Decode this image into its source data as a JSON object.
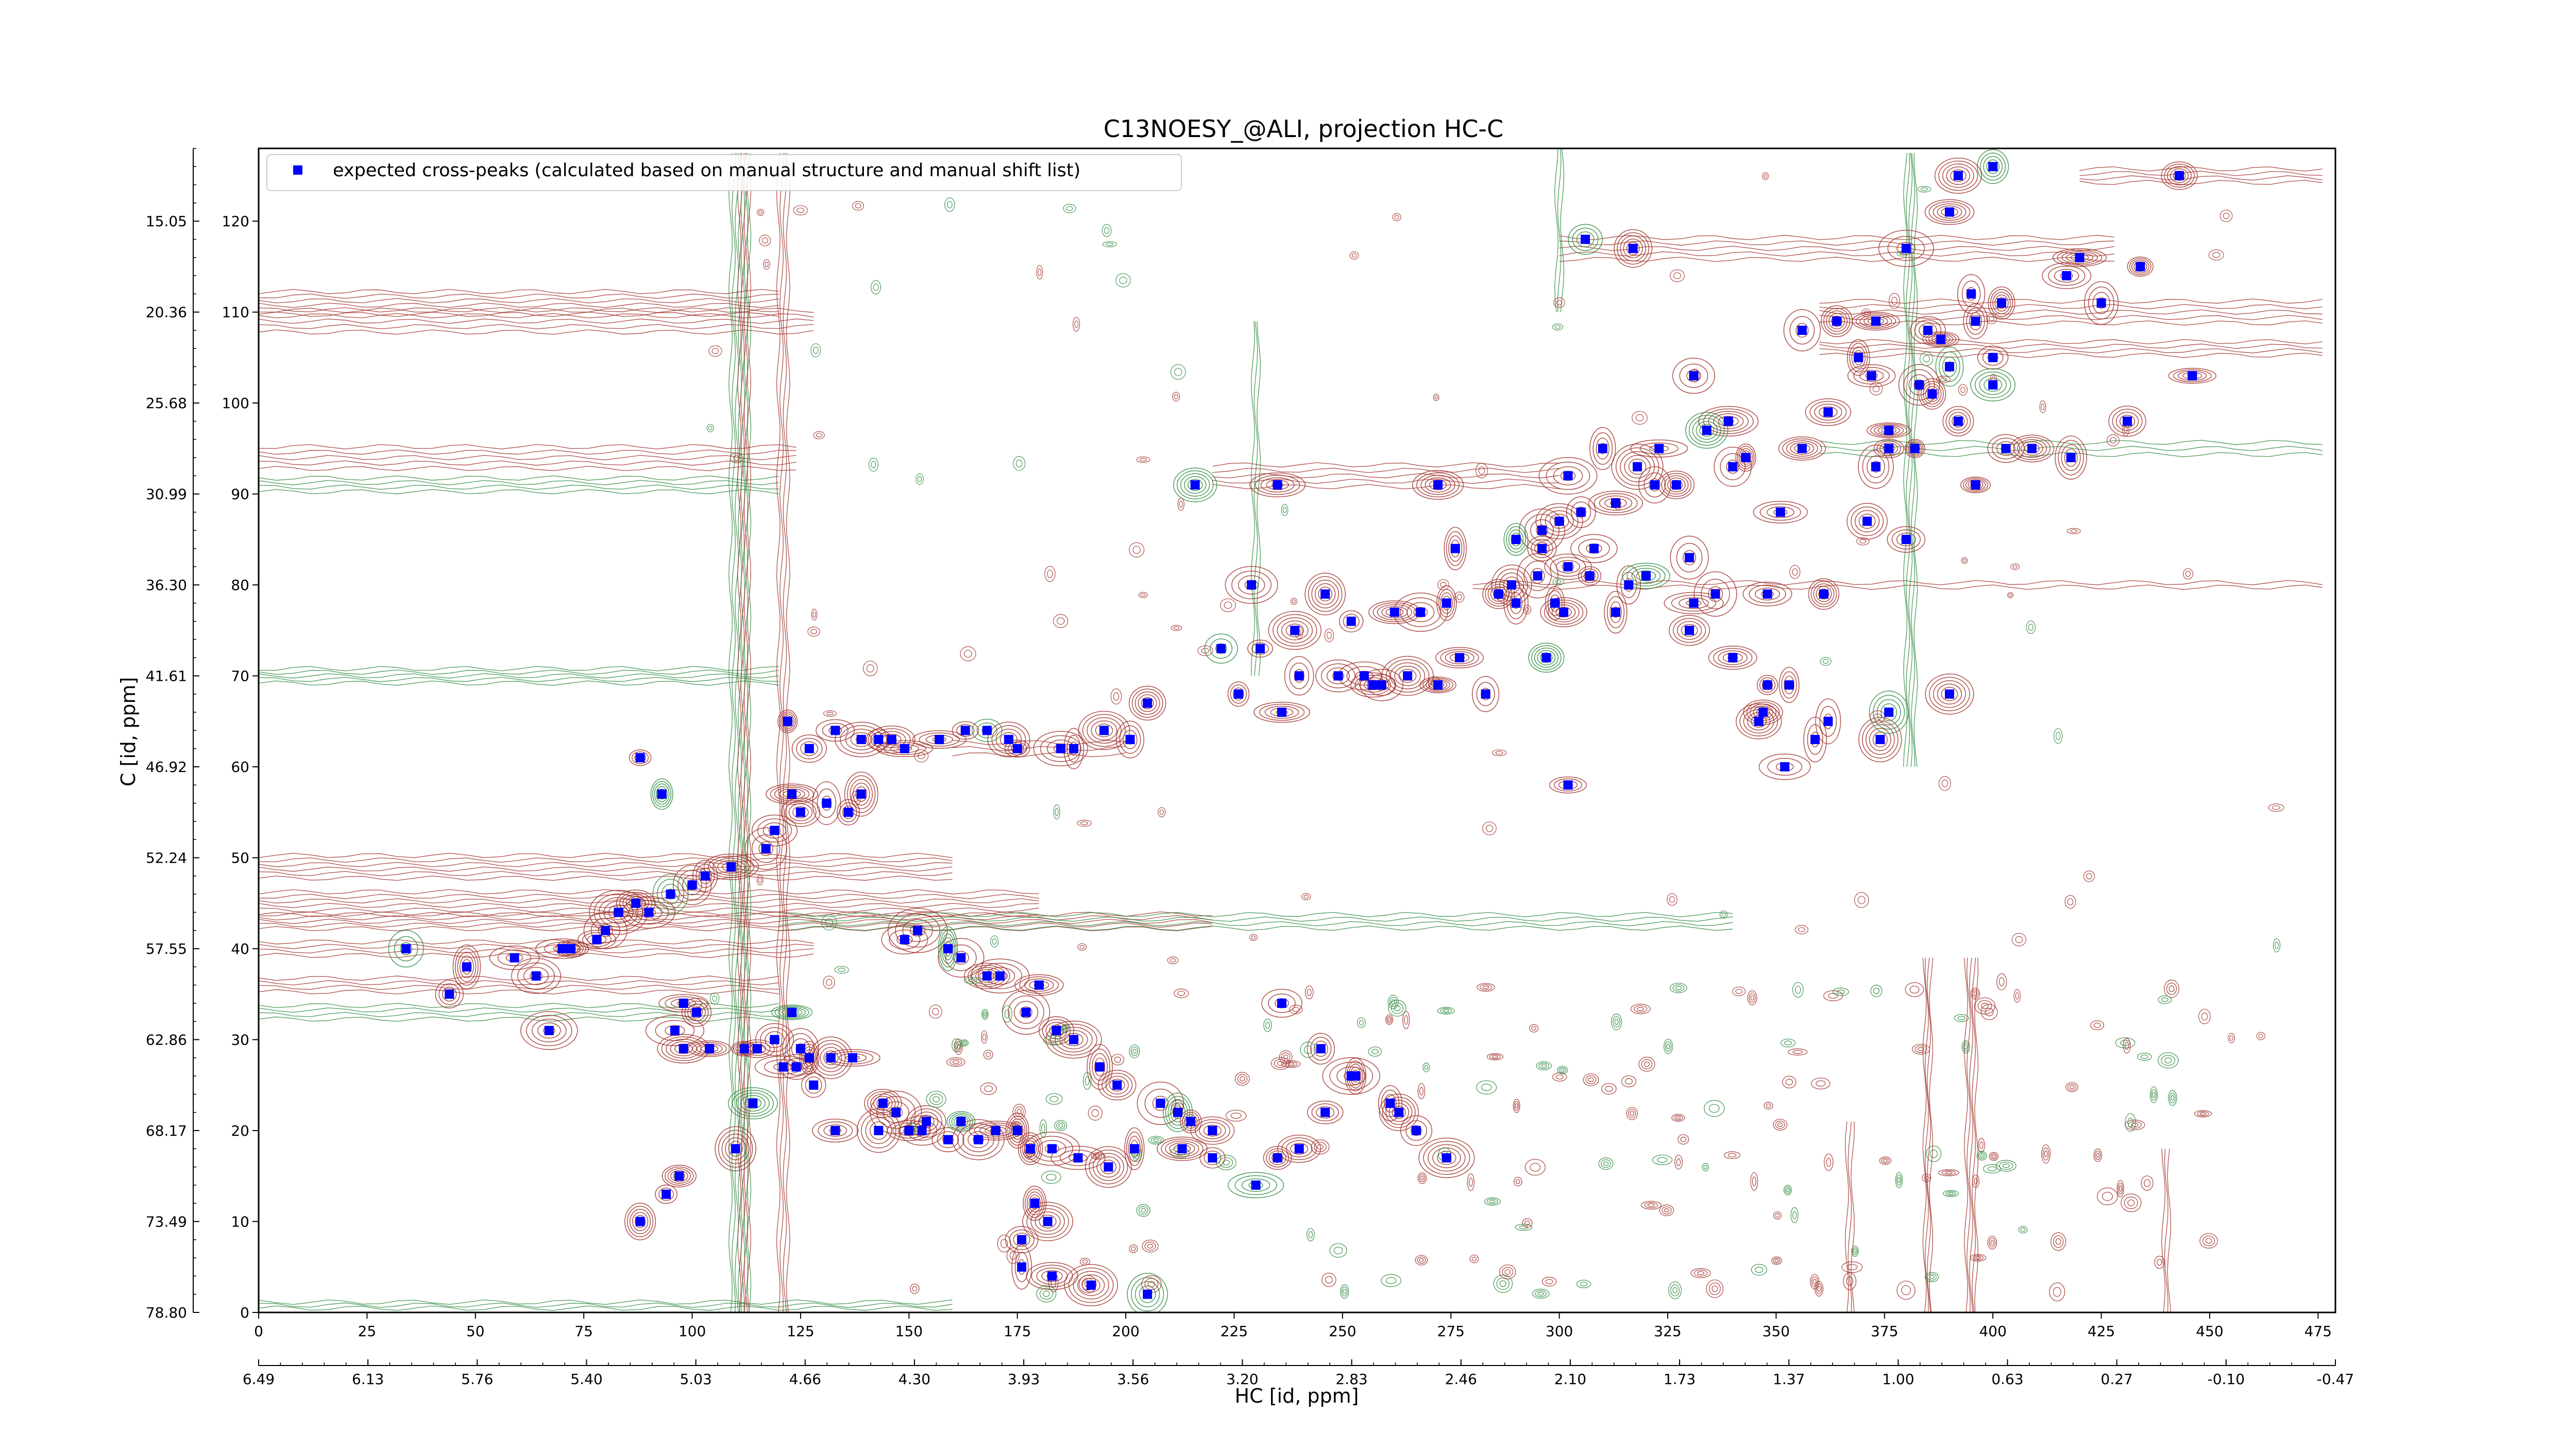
{
  "chart_data": {
    "type": "scatter",
    "title": "C13NOESY_@ALI, projection HC-C",
    "xlabel": "HC [id, ppm]",
    "ylabel": "C [id, ppm]",
    "x_index_range": [
      0,
      479
    ],
    "y_index_range": [
      0,
      128
    ],
    "x_index_ticks": [
      0,
      25,
      50,
      75,
      100,
      125,
      150,
      175,
      200,
      225,
      250,
      275,
      300,
      325,
      350,
      375,
      400,
      425,
      450,
      475
    ],
    "y_index_ticks": [
      0,
      10,
      20,
      30,
      40,
      50,
      60,
      70,
      80,
      90,
      100,
      110,
      120
    ],
    "x_ppm_labels": [
      "6.49",
      "6.13",
      "5.76",
      "5.40",
      "5.03",
      "4.66",
      "4.30",
      "3.93",
      "3.56",
      "3.20",
      "2.83",
      "2.46",
      "2.10",
      "1.73",
      "1.37",
      "1.00",
      "0.63",
      "0.27",
      "-0.10",
      "-0.47"
    ],
    "y_ppm_labels": [
      "78.80",
      "73.49",
      "68.17",
      "62.86",
      "57.55",
      "52.24",
      "46.92",
      "41.61",
      "36.30",
      "30.99",
      "25.68",
      "20.36",
      "15.05"
    ],
    "legend": {
      "position": "upper-left",
      "marker_color": "#0000ff",
      "label": "expected cross-peaks (calculated based on manual structure and manual shift list)"
    },
    "contour_colors": {
      "positive": "#a0322b",
      "negative": "#2e8b3f"
    },
    "series": [
      {
        "marker_color": "#0000ff",
        "points": [
          [
            400,
            126
          ],
          [
            392,
            125
          ],
          [
            380,
            117
          ],
          [
            390,
            121
          ],
          [
            402,
            111
          ],
          [
            395,
            112
          ],
          [
            420,
            116
          ],
          [
            417,
            114
          ],
          [
            425,
            111
          ],
          [
            443,
            125
          ],
          [
            434,
            115
          ],
          [
            306,
            118
          ],
          [
            317,
            117
          ],
          [
            356,
            108
          ],
          [
            364,
            109
          ],
          [
            373,
            109
          ],
          [
            369,
            105
          ],
          [
            372,
            103
          ],
          [
            385,
            108
          ],
          [
            388,
            107
          ],
          [
            396,
            109
          ],
          [
            400,
            105
          ],
          [
            390,
            104
          ],
          [
            383,
            102
          ],
          [
            446,
            103
          ],
          [
            431,
            98
          ],
          [
            392,
            98
          ],
          [
            386,
            101
          ],
          [
            376,
            97
          ],
          [
            362,
            99
          ],
          [
            356,
            95
          ],
          [
            339,
            98
          ],
          [
            331,
            103
          ],
          [
            334,
            97
          ],
          [
            323,
            95
          ],
          [
            340,
            93
          ],
          [
            351,
            88
          ],
          [
            327,
            91
          ],
          [
            322,
            91
          ],
          [
            318,
            93
          ],
          [
            313,
            89
          ],
          [
            305,
            88
          ],
          [
            300,
            87
          ],
          [
            296,
            86
          ],
          [
            290,
            85
          ],
          [
            308,
            84
          ],
          [
            302,
            82
          ],
          [
            296,
            84
          ],
          [
            295,
            81
          ],
          [
            289,
            80
          ],
          [
            286,
            79
          ],
          [
            290,
            78
          ],
          [
            299,
            78
          ],
          [
            307,
            81
          ],
          [
            316,
            80
          ],
          [
            320,
            81
          ],
          [
            330,
            83
          ],
          [
            313,
            77
          ],
          [
            331,
            78
          ],
          [
            336,
            79
          ],
          [
            348,
            79
          ],
          [
            361,
            79
          ],
          [
            371,
            87
          ],
          [
            376,
            95
          ],
          [
            382,
            95
          ],
          [
            380,
            85
          ],
          [
            400,
            102
          ],
          [
            403,
            95
          ],
          [
            418,
            94
          ],
          [
            409,
            95
          ],
          [
            396,
            91
          ],
          [
            373,
            93
          ],
          [
            343,
            94
          ],
          [
            310,
            95
          ],
          [
            302,
            92
          ],
          [
            272,
            91
          ],
          [
            235,
            91
          ],
          [
            216,
            91
          ],
          [
            276,
            84
          ],
          [
            274,
            78
          ],
          [
            229,
            80
          ],
          [
            246,
            79
          ],
          [
            252,
            76
          ],
          [
            262,
            77
          ],
          [
            268,
            77
          ],
          [
            277,
            72
          ],
          [
            239,
            75
          ],
          [
            231,
            73
          ],
          [
            222,
            73
          ],
          [
            226,
            68
          ],
          [
            236,
            66
          ],
          [
            240,
            70
          ],
          [
            249,
            70
          ],
          [
            255,
            70
          ],
          [
            257,
            69
          ],
          [
            259,
            69
          ],
          [
            272,
            69
          ],
          [
            265,
            70
          ],
          [
            283,
            68
          ],
          [
            297,
            72
          ],
          [
            301,
            77
          ],
          [
            330,
            75
          ],
          [
            340,
            72
          ],
          [
            348,
            69
          ],
          [
            347,
            66
          ],
          [
            359,
            63
          ],
          [
            374,
            63
          ],
          [
            390,
            68
          ],
          [
            346,
            65
          ],
          [
            352,
            60
          ],
          [
            376,
            66
          ],
          [
            353,
            69
          ],
          [
            362,
            65
          ],
          [
            302,
            58
          ],
          [
            205,
            67
          ],
          [
            195,
            64
          ],
          [
            201,
            63
          ],
          [
            188,
            62
          ],
          [
            185,
            62
          ],
          [
            175,
            62
          ],
          [
            173,
            63
          ],
          [
            168,
            64
          ],
          [
            163,
            64
          ],
          [
            157,
            63
          ],
          [
            149,
            62
          ],
          [
            146,
            63
          ],
          [
            143,
            63
          ],
          [
            139,
            63
          ],
          [
            133,
            64
          ],
          [
            122,
            65
          ],
          [
            127,
            62
          ],
          [
            88,
            61
          ],
          [
            93,
            57
          ],
          [
            123,
            57
          ],
          [
            131,
            56
          ],
          [
            139,
            57
          ],
          [
            136,
            55
          ],
          [
            125,
            55
          ],
          [
            119,
            53
          ],
          [
            117,
            51
          ],
          [
            109,
            49
          ],
          [
            103,
            48
          ],
          [
            100,
            47
          ],
          [
            95,
            46
          ],
          [
            87,
            45
          ],
          [
            90,
            44
          ],
          [
            83,
            44
          ],
          [
            80,
            42
          ],
          [
            78,
            41
          ],
          [
            72,
            40
          ],
          [
            70,
            40
          ],
          [
            59,
            39
          ],
          [
            48,
            38
          ],
          [
            44,
            35
          ],
          [
            34,
            40
          ],
          [
            64,
            37
          ],
          [
            67,
            31
          ],
          [
            98,
            34
          ],
          [
            101,
            33
          ],
          [
            96,
            31
          ],
          [
            98,
            29
          ],
          [
            104,
            29
          ],
          [
            112,
            29
          ],
          [
            115,
            29
          ],
          [
            119,
            30
          ],
          [
            123,
            33
          ],
          [
            127,
            28
          ],
          [
            124,
            27
          ],
          [
            128,
            25
          ],
          [
            132,
            28
          ],
          [
            137,
            28
          ],
          [
            144,
            23
          ],
          [
            147,
            22
          ],
          [
            150,
            20
          ],
          [
            154,
            21
          ],
          [
            159,
            19
          ],
          [
            162,
            21
          ],
          [
            166,
            19
          ],
          [
            170,
            20
          ],
          [
            175,
            20
          ],
          [
            178,
            18
          ],
          [
            183,
            18
          ],
          [
            189,
            17
          ],
          [
            196,
            16
          ],
          [
            202,
            18
          ],
          [
            213,
            18
          ],
          [
            220,
            17
          ],
          [
            230,
            14
          ],
          [
            235,
            17
          ],
          [
            240,
            18
          ],
          [
            246,
            22
          ],
          [
            252,
            26
          ],
          [
            261,
            23
          ],
          [
            263,
            22
          ],
          [
            267,
            20
          ],
          [
            274,
            17
          ],
          [
            149,
            41
          ],
          [
            152,
            42
          ],
          [
            159,
            40
          ],
          [
            162,
            39
          ],
          [
            168,
            37
          ],
          [
            171,
            37
          ],
          [
            180,
            36
          ],
          [
            177,
            33
          ],
          [
            184,
            31
          ],
          [
            188,
            30
          ],
          [
            194,
            27
          ],
          [
            198,
            25
          ],
          [
            208,
            23
          ],
          [
            212,
            22
          ],
          [
            215,
            21
          ],
          [
            220,
            20
          ],
          [
            236,
            34
          ],
          [
            245,
            29
          ],
          [
            253,
            26
          ],
          [
            179,
            12
          ],
          [
            182,
            10
          ],
          [
            176,
            8
          ],
          [
            125,
            29
          ],
          [
            121,
            27
          ],
          [
            114,
            23
          ],
          [
            110,
            18
          ],
          [
            97,
            15
          ],
          [
            94,
            13
          ],
          [
            88,
            10
          ],
          [
            133,
            20
          ],
          [
            143,
            20
          ],
          [
            153,
            20
          ],
          [
            176,
            5
          ],
          [
            183,
            4
          ],
          [
            192,
            3
          ],
          [
            205,
            2
          ]
        ]
      }
    ]
  }
}
